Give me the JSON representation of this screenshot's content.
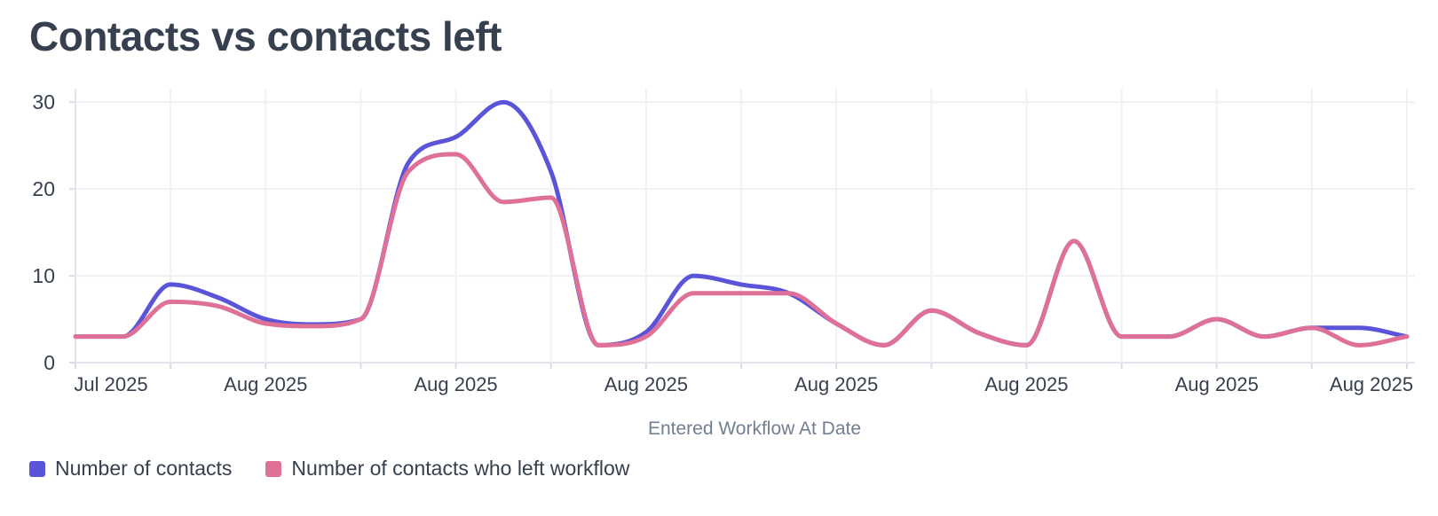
{
  "title": "Contacts vs contacts left",
  "chart_data": {
    "type": "line",
    "title": "Contacts vs contacts left",
    "xlabel": "Entered Workflow At Date",
    "ylabel": "",
    "ylim": [
      0,
      30
    ],
    "yticks": [
      0,
      10,
      20,
      30
    ],
    "grid": true,
    "legend_position": "bottom-left",
    "x_tick_labels": [
      "Jul 2025",
      "Aug 2025",
      "Aug 2025",
      "Aug 2025",
      "Aug 2025",
      "Aug 2025",
      "Aug 2025",
      "Aug 2025"
    ],
    "series": [
      {
        "name": "Number of contacts",
        "color": "#5a54d9",
        "values": [
          3,
          3,
          9,
          7.5,
          5,
          4.4,
          5,
          23,
          26,
          30,
          22,
          2,
          3.5,
          10,
          9,
          8,
          4.5,
          2,
          6,
          3.4,
          2,
          14,
          3,
          3,
          5,
          3,
          4,
          4,
          3
        ]
      },
      {
        "name": "Number of contacts who left workflow",
        "color": "#df7098",
        "values": [
          3,
          3,
          7,
          6.5,
          4.5,
          4.2,
          5,
          22,
          24,
          18.5,
          19,
          2,
          3,
          8,
          8,
          8,
          4.5,
          2,
          6,
          3.4,
          2,
          14,
          3,
          3,
          5,
          3,
          4,
          2,
          3
        ]
      }
    ]
  },
  "colors": {
    "text_dark": "#37404e",
    "axis_title_gray": "#727e91",
    "gridline": "#f0f1f6",
    "axis_line": "#e1e5ec",
    "tick_mark": "#d9dee6"
  }
}
